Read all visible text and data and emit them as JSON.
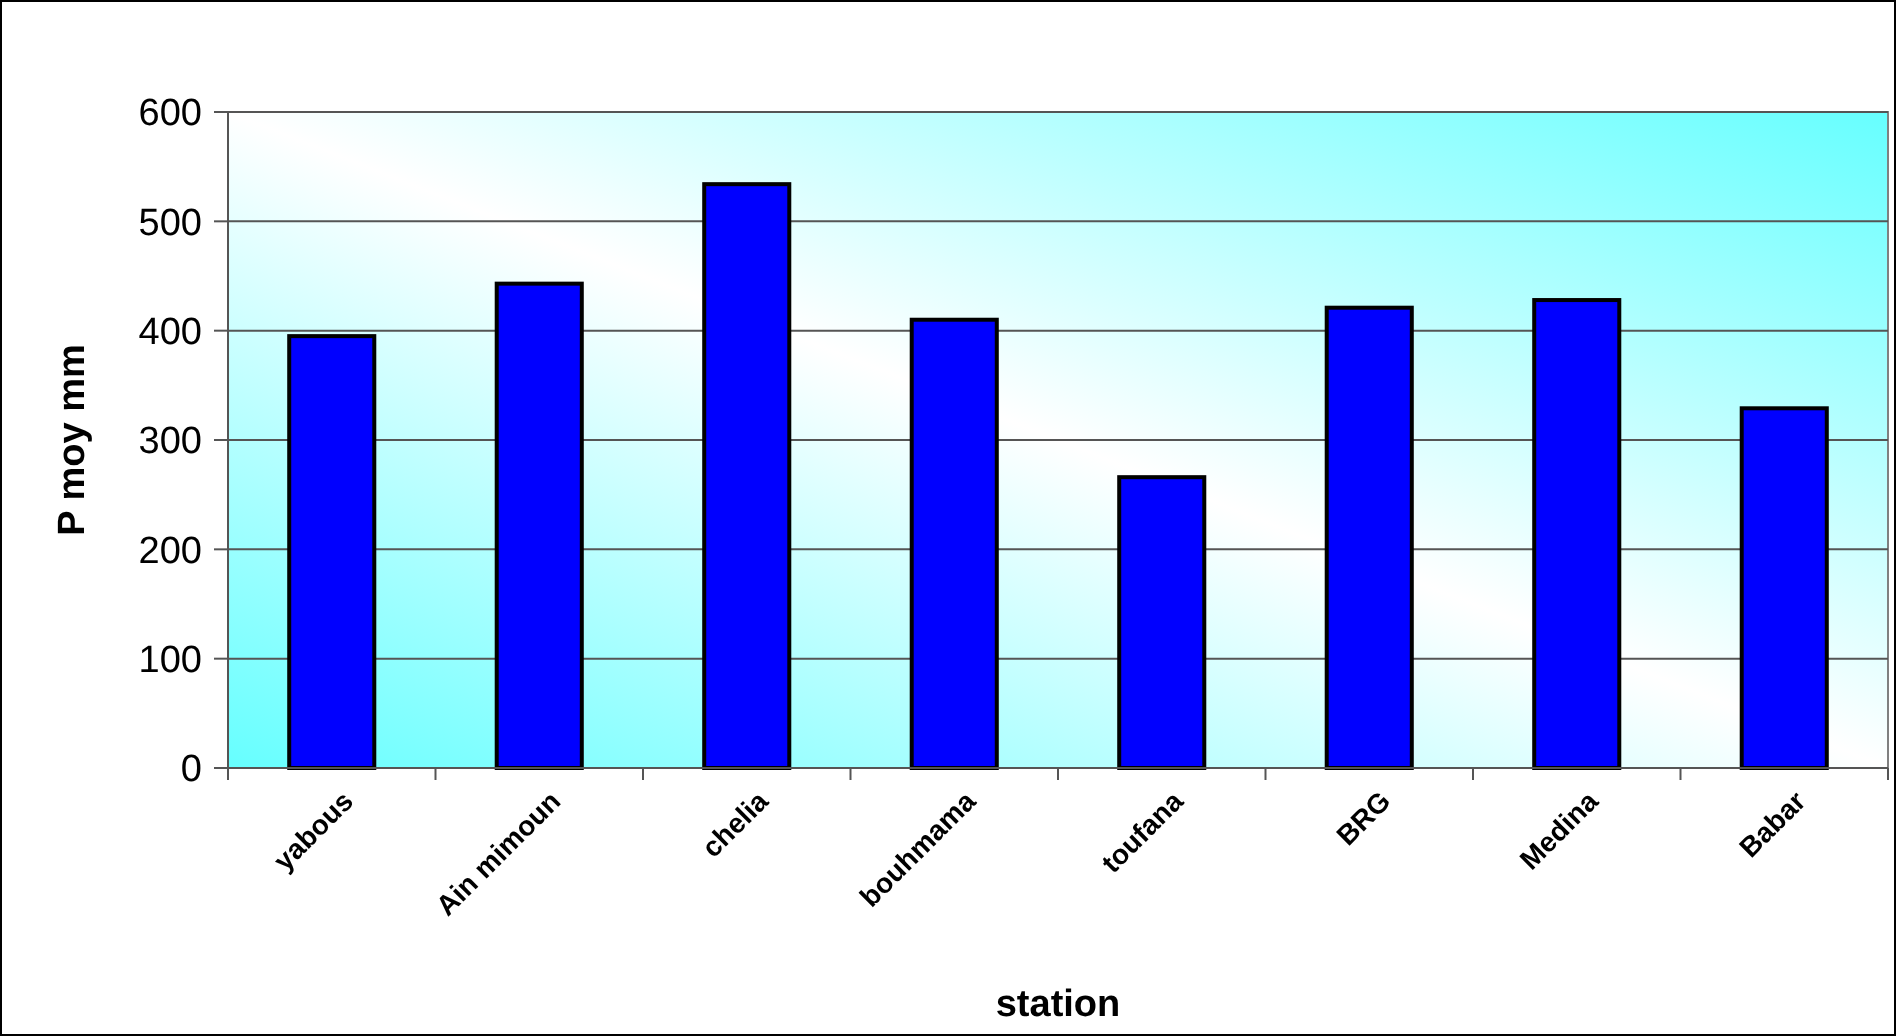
{
  "chart_data": {
    "type": "bar",
    "xlabel": "station",
    "ylabel": "P moy mm",
    "categories": [
      "yabous",
      "Ain mimoun",
      "chelia",
      "bouhmama",
      "toufana",
      "BRG",
      "Medina",
      "Babar"
    ],
    "values": [
      395,
      443,
      534,
      410,
      266,
      421,
      428,
      329
    ],
    "color": "#0000ff",
    "ylim": [
      0,
      600
    ],
    "yticks": [
      0,
      100,
      200,
      300,
      400,
      500,
      600
    ],
    "grid": "y"
  }
}
